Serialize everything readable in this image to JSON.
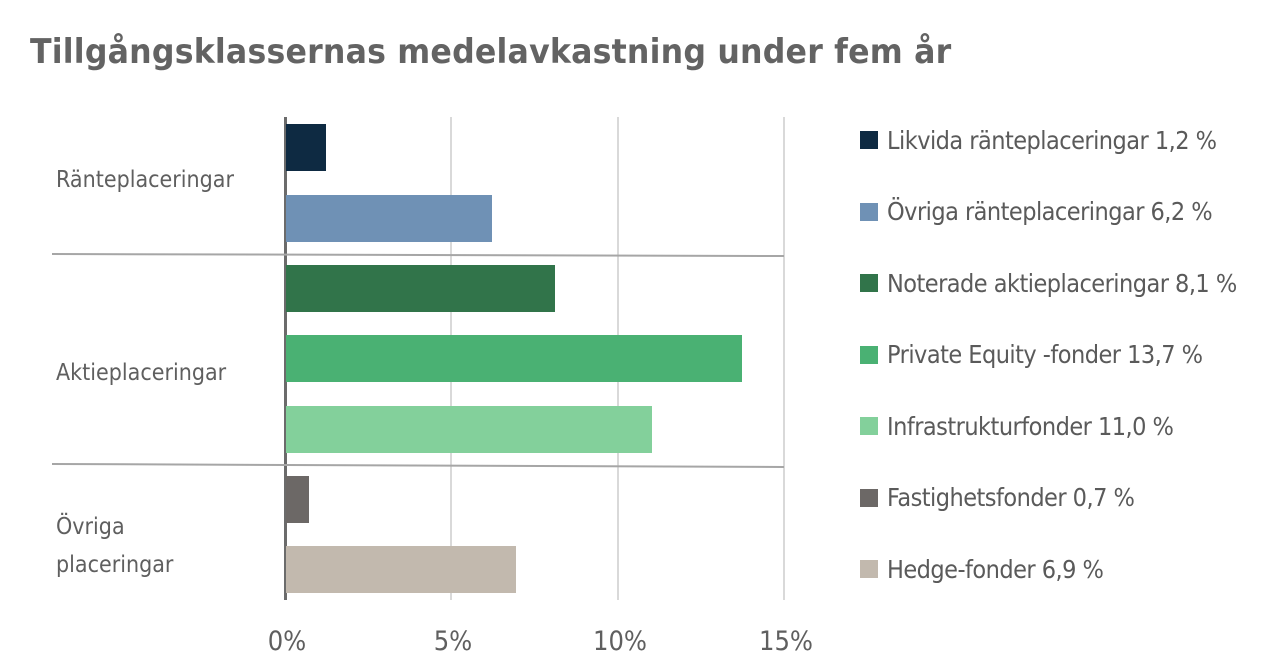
{
  "chart_data": {
    "type": "bar",
    "orientation": "horizontal",
    "title": "Tillgångsklassernas medelavkastning under fem år",
    "xlabel": "",
    "ylabel": "",
    "xlim": [
      0,
      15
    ],
    "x_ticks": [
      "0%",
      "5%",
      "10%",
      "15%"
    ],
    "grid": true,
    "legend_position": "right",
    "groups": [
      {
        "name": "Ränteplaceringar",
        "label_lines": [
          "Ränteplaceringar"
        ],
        "series": [
          "Likvida ränteplaceringar",
          "Övriga ränteplaceringar"
        ]
      },
      {
        "name": "Aktieplaceringar",
        "label_lines": [
          "Aktieplaceringar"
        ],
        "series": [
          "Noterade aktieplaceringar",
          "Private Equity -fonder",
          "Infrastrukturfonder"
        ]
      },
      {
        "name": "Övriga placeringar",
        "label_lines": [
          "Övriga",
          "placeringar"
        ],
        "series": [
          "Fastighetsfonder",
          "Hedge-fonder"
        ]
      }
    ],
    "series": [
      {
        "name": "Likvida ränteplaceringar",
        "value": 1.2,
        "color": "#0e2a42",
        "legend": "Likvida ränteplaceringar 1,2 %"
      },
      {
        "name": "Övriga ränteplaceringar",
        "value": 6.2,
        "color": "#6f91b5",
        "legend": "Övriga ränteplaceringar 6,2 %"
      },
      {
        "name": "Noterade aktieplaceringar",
        "value": 8.1,
        "color": "#31744a",
        "legend": "Noterade aktieplaceringar 8,1 %"
      },
      {
        "name": "Private Equity -fonder",
        "value": 13.7,
        "color": "#4ab173",
        "legend": "Private Equity -fonder 13,7 %"
      },
      {
        "name": "Infrastrukturfonder",
        "value": 11.0,
        "color": "#83d09b",
        "legend": "Infrastrukturfonder 11,0 %"
      },
      {
        "name": "Fastighetsfonder",
        "value": 0.7,
        "color": "#6c6866",
        "legend": "Fastighetsfonder 0,7 %"
      },
      {
        "name": "Hedge-fonder",
        "value": 6.9,
        "color": "#c2b9ae",
        "legend": "Hedge-fonder 6,9 %"
      }
    ]
  },
  "categories": {
    "c0": "Ränteplaceringar",
    "c1": "Aktieplaceringar",
    "c2a": "Övriga",
    "c2b": "placeringar"
  }
}
